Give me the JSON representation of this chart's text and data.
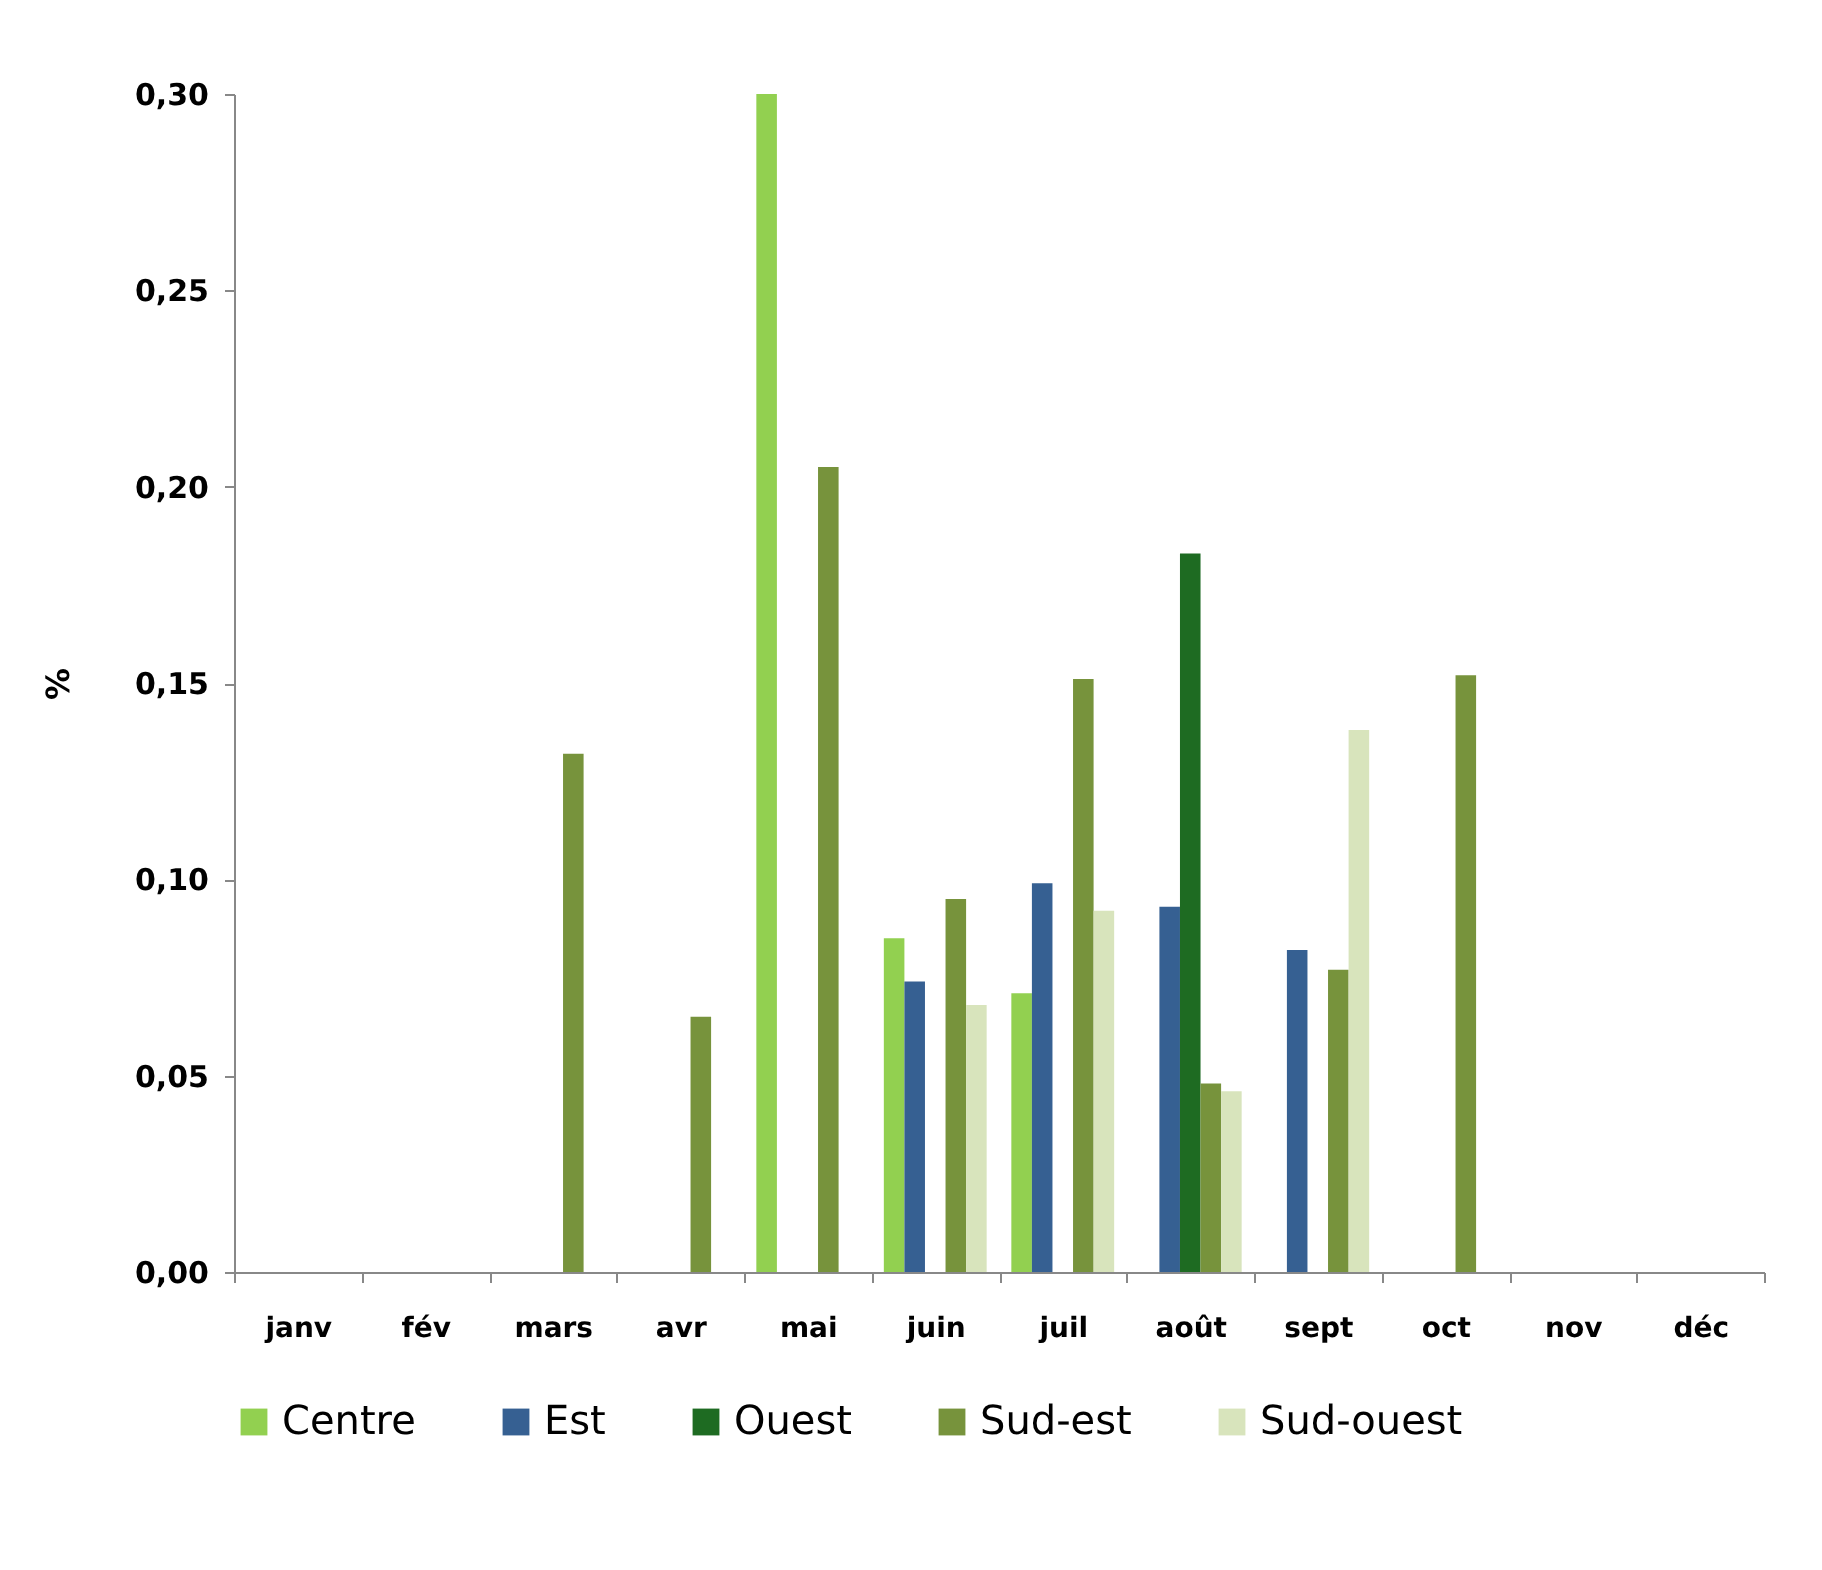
{
  "chart_data": {
    "type": "bar",
    "ylabel": "%",
    "categories": [
      "janv",
      "fév",
      "mars",
      "avr",
      "mai",
      "juin",
      "juil",
      "août",
      "sept",
      "oct",
      "nov",
      "déc"
    ],
    "series": [
      {
        "name": "Centre",
        "color": "#92d050",
        "values": [
          null,
          null,
          null,
          null,
          0.3,
          0.085,
          0.071,
          null,
          null,
          null,
          null,
          null
        ]
      },
      {
        "name": "Est",
        "color": "#366092",
        "values": [
          null,
          null,
          null,
          null,
          null,
          0.074,
          0.099,
          0.093,
          0.082,
          null,
          null,
          null
        ]
      },
      {
        "name": "Ouest",
        "color": "#1e6b22",
        "values": [
          null,
          null,
          null,
          null,
          null,
          null,
          null,
          0.183,
          null,
          null,
          null,
          null
        ]
      },
      {
        "name": "Sud-est",
        "color": "#77933c",
        "values": [
          null,
          null,
          0.132,
          0.065,
          0.205,
          0.095,
          0.151,
          0.048,
          0.077,
          0.152,
          null,
          null
        ]
      },
      {
        "name": "Sud-ouest",
        "color": "#d8e4bc",
        "values": [
          null,
          null,
          null,
          null,
          null,
          0.068,
          0.092,
          0.046,
          0.138,
          null,
          null,
          null
        ]
      }
    ],
    "ylim": [
      0,
      0.3
    ],
    "yticks": [
      {
        "value": 0,
        "label": "0,00"
      },
      {
        "value": 0.05,
        "label": "0,05"
      },
      {
        "value": 0.1,
        "label": "0,10"
      },
      {
        "value": 0.15,
        "label": "0,15"
      },
      {
        "value": 0.2,
        "label": "0,20"
      },
      {
        "value": 0.25,
        "label": "0,25"
      },
      {
        "value": 0.3,
        "label": "0,30"
      }
    ],
    "grid": false,
    "legend": "bottom"
  }
}
